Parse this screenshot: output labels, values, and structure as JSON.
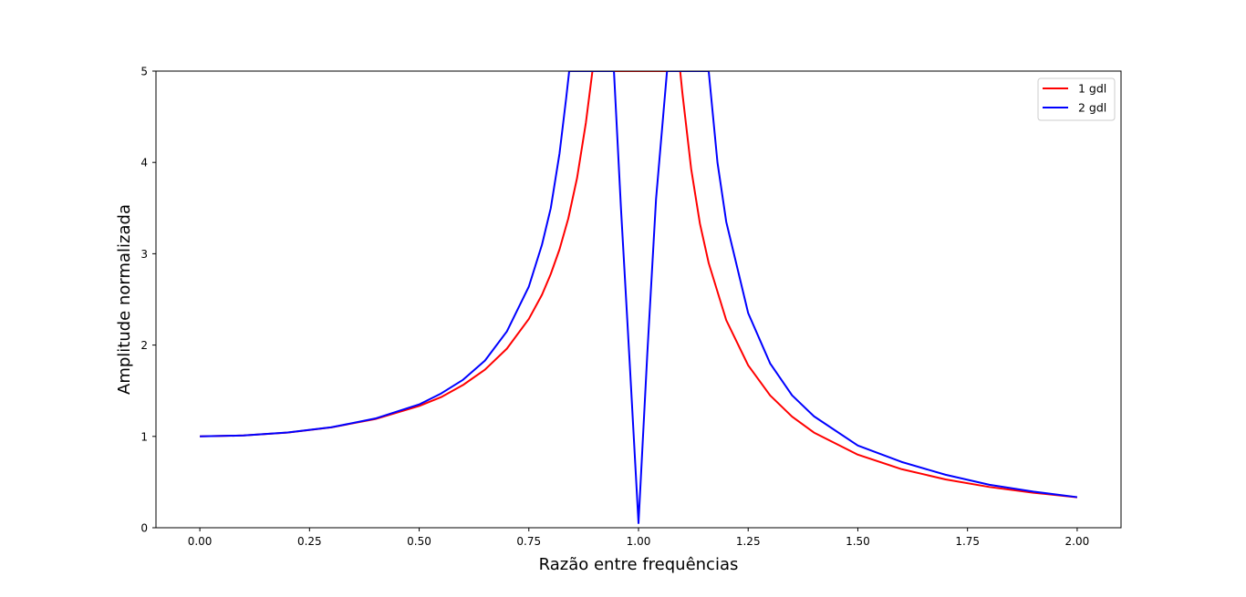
{
  "chart_data": {
    "type": "line",
    "title": "",
    "xlabel": "Razão entre frequências",
    "ylabel": "Amplitude normalizada",
    "xlim": [
      -0.1,
      2.1
    ],
    "ylim": [
      0,
      5
    ],
    "xticks": [
      0.0,
      0.25,
      0.5,
      0.75,
      1.0,
      1.25,
      1.5,
      1.75,
      2.0
    ],
    "xtick_labels": [
      "0.00",
      "0.25",
      "0.50",
      "0.75",
      "1.00",
      "1.25",
      "1.50",
      "1.75",
      "2.00"
    ],
    "yticks": [
      0,
      1,
      2,
      3,
      4,
      5
    ],
    "ytick_labels": [
      "0",
      "1",
      "2",
      "3",
      "4",
      "5"
    ],
    "grid": false,
    "legend_position": "top-right",
    "series": [
      {
        "name": "1 gdl",
        "color": "#ff0000",
        "points": [
          [
            0.0,
            1.0
          ],
          [
            0.1,
            1.01
          ],
          [
            0.2,
            1.042
          ],
          [
            0.3,
            1.099
          ],
          [
            0.4,
            1.19
          ],
          [
            0.5,
            1.333
          ],
          [
            0.55,
            1.43
          ],
          [
            0.6,
            1.563
          ],
          [
            0.65,
            1.731
          ],
          [
            0.7,
            1.961
          ],
          [
            0.75,
            2.286
          ],
          [
            0.78,
            2.551
          ],
          [
            0.8,
            2.778
          ],
          [
            0.82,
            3.049
          ],
          [
            0.84,
            3.387
          ],
          [
            0.86,
            3.831
          ],
          [
            0.88,
            4.433
          ],
          [
            0.895,
            5.0
          ],
          [
            1.095,
            5.0
          ],
          [
            1.1,
            4.762
          ],
          [
            1.12,
            3.931
          ],
          [
            1.14,
            3.33
          ],
          [
            1.16,
            2.898
          ],
          [
            1.2,
            2.273
          ],
          [
            1.25,
            1.778
          ],
          [
            1.3,
            1.449
          ],
          [
            1.35,
            1.217
          ],
          [
            1.4,
            1.042
          ],
          [
            1.5,
            0.8
          ],
          [
            1.6,
            0.641
          ],
          [
            1.7,
            0.529
          ],
          [
            1.8,
            0.446
          ],
          [
            1.9,
            0.383
          ],
          [
            2.0,
            0.333
          ]
        ]
      },
      {
        "name": "2 gdl",
        "color": "#0000ff",
        "points": [
          [
            0.0,
            1.0
          ],
          [
            0.1,
            1.01
          ],
          [
            0.2,
            1.043
          ],
          [
            0.3,
            1.1
          ],
          [
            0.4,
            1.196
          ],
          [
            0.5,
            1.35
          ],
          [
            0.55,
            1.47
          ],
          [
            0.6,
            1.62
          ],
          [
            0.65,
            1.83
          ],
          [
            0.7,
            2.15
          ],
          [
            0.75,
            2.64
          ],
          [
            0.78,
            3.1
          ],
          [
            0.8,
            3.5
          ],
          [
            0.82,
            4.1
          ],
          [
            0.835,
            4.7
          ],
          [
            0.842,
            5.0
          ],
          [
            0.944,
            5.0
          ],
          [
            0.96,
            3.5
          ],
          [
            0.98,
            1.8
          ],
          [
            1.0,
            0.05
          ],
          [
            1.02,
            1.9
          ],
          [
            1.04,
            3.6
          ],
          [
            1.065,
            5.0
          ],
          [
            1.16,
            5.0
          ],
          [
            1.18,
            4.0
          ],
          [
            1.2,
            3.35
          ],
          [
            1.25,
            2.35
          ],
          [
            1.3,
            1.8
          ],
          [
            1.35,
            1.45
          ],
          [
            1.4,
            1.22
          ],
          [
            1.5,
            0.9
          ],
          [
            1.6,
            0.72
          ],
          [
            1.7,
            0.58
          ],
          [
            1.8,
            0.47
          ],
          [
            1.9,
            0.395
          ],
          [
            2.0,
            0.335
          ]
        ]
      }
    ]
  }
}
